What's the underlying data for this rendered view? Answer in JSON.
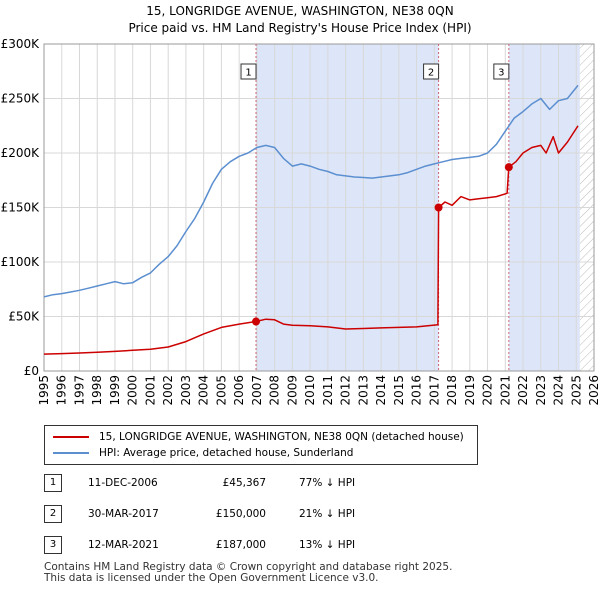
{
  "header": {
    "title_line1": "15, LONGRIDGE AVENUE, WASHINGTON, NE38 0QN",
    "title_line2": "Price paid vs. HM Land Registry's House Price Index (HPI)"
  },
  "colors": {
    "price_paid": "#cc0000",
    "hpi": "#5b8fd0",
    "shade": "#dde6f8",
    "grid": "#d8d8d8",
    "marker_line": "#cc6677"
  },
  "legend": {
    "price_paid_label": "15, LONGRIDGE AVENUE, WASHINGTON, NE38 0QN (detached house)",
    "hpi_label": "HPI: Average price, detached house, Sunderland"
  },
  "transactions": [
    {
      "num": "1",
      "date": "11-DEC-2006",
      "price": "£45,367",
      "hpi_diff": "77% ↓ HPI"
    },
    {
      "num": "2",
      "date": "30-MAR-2017",
      "price": "£150,000",
      "hpi_diff": "21% ↓ HPI"
    },
    {
      "num": "3",
      "date": "12-MAR-2021",
      "price": "£187,000",
      "hpi_diff": "13% ↓ HPI"
    }
  ],
  "footer": {
    "line1": "Contains HM Land Registry data © Crown copyright and database right 2025.",
    "line2": "This data is licensed under the Open Government Licence v3.0."
  },
  "chart_data": {
    "type": "line",
    "xlim": [
      1995,
      2026
    ],
    "ylim": [
      0,
      300000
    ],
    "yticks": [
      0,
      50000,
      100000,
      150000,
      200000,
      250000,
      300000
    ],
    "ytick_labels": [
      "£0",
      "£50K",
      "£100K",
      "£150K",
      "£200K",
      "£250K",
      "£300K"
    ],
    "xticks": [
      1995,
      1996,
      1997,
      1998,
      1999,
      2000,
      2001,
      2002,
      2003,
      2004,
      2005,
      2006,
      2007,
      2008,
      2009,
      2010,
      2011,
      2012,
      2013,
      2014,
      2015,
      2016,
      2017,
      2018,
      2019,
      2020,
      2021,
      2022,
      2023,
      2024,
      2025,
      2026
    ],
    "shaded_ranges": [
      [
        2006.95,
        2017.24
      ],
      [
        2021.2,
        2025.2
      ]
    ],
    "hatched_from": 2025.2,
    "sale_markers": [
      {
        "label": "1",
        "x": 2006.95,
        "y": 45367
      },
      {
        "label": "2",
        "x": 2017.24,
        "y": 150000
      },
      {
        "label": "3",
        "x": 2021.2,
        "y": 187000
      }
    ],
    "series": [
      {
        "name": "15, LONGRIDGE AVENUE, WASHINGTON, NE38 0QN (detached house)",
        "x": [
          1995,
          1996,
          1997,
          1998,
          1999,
          2000,
          2001,
          2002,
          2003,
          2004,
          2005,
          2006,
          2006.95,
          2007.5,
          2008,
          2008.5,
          2009,
          2010,
          2011,
          2012,
          2013,
          2014,
          2015,
          2016,
          2017.2,
          2017.24,
          2017.6,
          2018,
          2018.5,
          2019,
          2019.5,
          2020,
          2020.5,
          2021.1,
          2021.2,
          2021.6,
          2022,
          2022.5,
          2023,
          2023.3,
          2023.7,
          2024,
          2024.5,
          2025.1
        ],
        "values": [
          15500,
          16000,
          16500,
          17200,
          18000,
          19000,
          20000,
          22000,
          27000,
          34000,
          40000,
          43000,
          45367,
          47500,
          47000,
          43000,
          42000,
          41500,
          40500,
          38500,
          39000,
          39500,
          40000,
          40500,
          42500,
          150000,
          155000,
          152000,
          160000,
          157000,
          158000,
          159000,
          160000,
          163000,
          187000,
          192000,
          200000,
          205000,
          207000,
          200000,
          215000,
          200000,
          210000,
          225000
        ]
      },
      {
        "name": "HPI: Average price, detached house, Sunderland",
        "x": [
          1995,
          1995.5,
          1996,
          1996.5,
          1997,
          1997.5,
          1998,
          1998.5,
          1999,
          1999.5,
          2000,
          2000.5,
          2001,
          2001.5,
          2002,
          2002.5,
          2003,
          2003.5,
          2004,
          2004.5,
          2005,
          2005.5,
          2006,
          2006.5,
          2007,
          2007.5,
          2008,
          2008.5,
          2009,
          2009.5,
          2010,
          2010.5,
          2011,
          2011.5,
          2012,
          2012.5,
          2013,
          2013.5,
          2014,
          2014.5,
          2015,
          2015.5,
          2016,
          2016.5,
          2017,
          2017.5,
          2018,
          2018.5,
          2019,
          2019.5,
          2020,
          2020.5,
          2021,
          2021.5,
          2022,
          2022.5,
          2023,
          2023.5,
          2024,
          2024.5,
          2025.1
        ],
        "values": [
          68000,
          70000,
          71000,
          72500,
          74000,
          76000,
          78000,
          80000,
          82000,
          80000,
          81000,
          86000,
          90000,
          98000,
          105000,
          115000,
          128000,
          140000,
          155000,
          172000,
          185000,
          192000,
          197000,
          200000,
          205000,
          207000,
          205000,
          195000,
          188000,
          190000,
          188000,
          185000,
          183000,
          180000,
          179000,
          178000,
          177500,
          177000,
          178000,
          179000,
          180000,
          182000,
          185000,
          188000,
          190000,
          192000,
          194000,
          195000,
          196000,
          197000,
          200000,
          208000,
          220000,
          232000,
          238000,
          245000,
          250000,
          240000,
          248000,
          250000,
          262000
        ]
      }
    ]
  }
}
